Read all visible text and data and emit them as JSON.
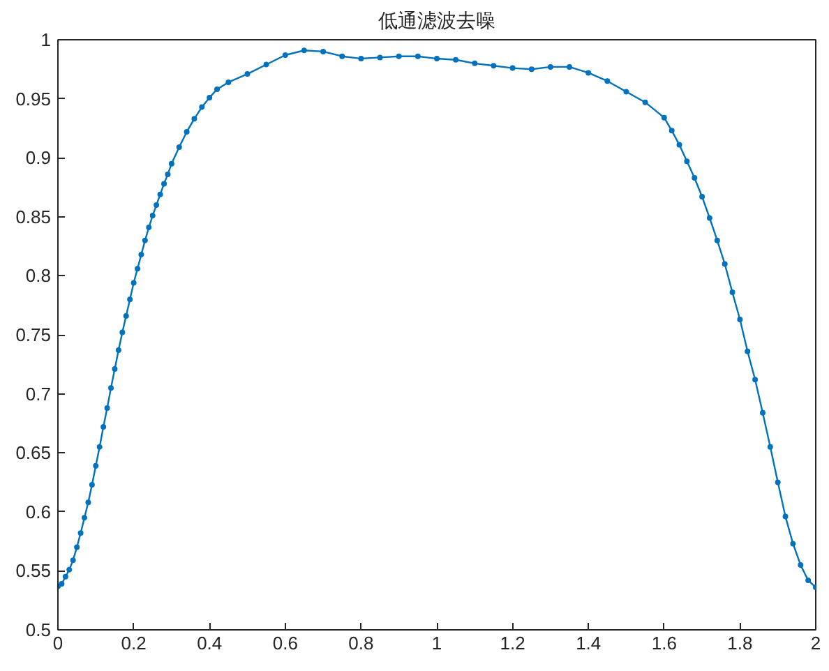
{
  "chart_data": {
    "type": "line",
    "title": "低通滤波去噪",
    "marker": "circle",
    "line_style": "solid",
    "grid": false,
    "xlim": [
      0,
      2
    ],
    "xticks": [
      0,
      0.2,
      0.4,
      0.6,
      0.8,
      1,
      1.2,
      1.4,
      1.6,
      1.8,
      2
    ],
    "ylim": [
      0.5,
      1
    ],
    "yticks": [
      0.5,
      0.55,
      0.6,
      0.65,
      0.7,
      0.75,
      0.8,
      0.85,
      0.9,
      0.95,
      1
    ],
    "series": [
      {
        "color": "#0072bd",
        "x": [
          0,
          0.01,
          0.02,
          0.03,
          0.04,
          0.05,
          0.06,
          0.07,
          0.08,
          0.09,
          0.1,
          0.11,
          0.12,
          0.13,
          0.14,
          0.15,
          0.16,
          0.17,
          0.18,
          0.19,
          0.2,
          0.21,
          0.22,
          0.23,
          0.24,
          0.25,
          0.26,
          0.27,
          0.28,
          0.29,
          0.3,
          0.32,
          0.34,
          0.36,
          0.38,
          0.4,
          0.42,
          0.45,
          0.5,
          0.55,
          0.6,
          0.65,
          0.7,
          0.75,
          0.8,
          0.85,
          0.9,
          0.95,
          1,
          1.05,
          1.1,
          1.15,
          1.2,
          1.25,
          1.3,
          1.35,
          1.4,
          1.45,
          1.5,
          1.55,
          1.6,
          1.62,
          1.64,
          1.66,
          1.68,
          1.7,
          1.72,
          1.74,
          1.76,
          1.78,
          1.8,
          1.82,
          1.84,
          1.86,
          1.88,
          1.9,
          1.92,
          1.94,
          1.96,
          1.98,
          2
        ],
        "values": [
          0.537,
          0.539,
          0.545,
          0.551,
          0.559,
          0.57,
          0.582,
          0.595,
          0.608,
          0.623,
          0.639,
          0.655,
          0.672,
          0.688,
          0.705,
          0.721,
          0.737,
          0.752,
          0.766,
          0.78,
          0.794,
          0.806,
          0.818,
          0.83,
          0.841,
          0.851,
          0.86,
          0.869,
          0.878,
          0.886,
          0.895,
          0.909,
          0.922,
          0.933,
          0.943,
          0.951,
          0.958,
          0.964,
          0.971,
          0.979,
          0.987,
          0.991,
          0.99,
          0.986,
          0.984,
          0.985,
          0.986,
          0.986,
          0.984,
          0.983,
          0.98,
          0.978,
          0.976,
          0.975,
          0.977,
          0.977,
          0.972,
          0.965,
          0.956,
          0.947,
          0.934,
          0.923,
          0.911,
          0.897,
          0.883,
          0.867,
          0.849,
          0.83,
          0.81,
          0.786,
          0.763,
          0.736,
          0.712,
          0.684,
          0.655,
          0.625,
          0.596,
          0.573,
          0.555,
          0.542,
          0.536
        ]
      }
    ]
  }
}
